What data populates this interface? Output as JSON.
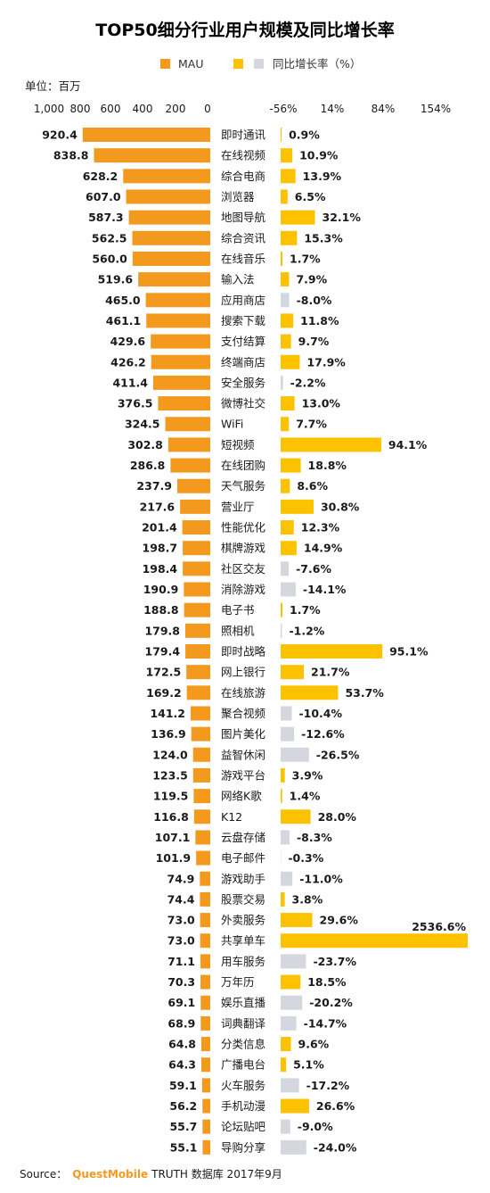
{
  "chart_data": {
    "type": "bar",
    "title": "TOP50细分行业用户规模及同比增长率",
    "unit_label": "单位：百万",
    "legend": {
      "mau": "MAU",
      "growth": "同比增长率（%）"
    },
    "colors": {
      "mau": "#f39a1e",
      "growth_positive": "#fcc200",
      "growth_negative": "#d4d7dd"
    },
    "left_axis": {
      "ticks": [
        "1,000",
        "800",
        "600",
        "400",
        "200",
        "0"
      ],
      "tick_values": [
        1000,
        800,
        600,
        400,
        200,
        0
      ],
      "range": [
        1000,
        0
      ]
    },
    "right_axis": {
      "ticks": [
        "-56%",
        "14%",
        "84%",
        "154%"
      ],
      "tick_values": [
        -56,
        14,
        84,
        154
      ]
    },
    "categories": [
      "即时通讯",
      "在线视频",
      "综合电商",
      "浏览器",
      "地图导航",
      "综合资讯",
      "在线音乐",
      "输入法",
      "应用商店",
      "搜索下载",
      "支付结算",
      "终端商店",
      "安全服务",
      "微博社交",
      "WiFi",
      "短视频",
      "在线团购",
      "天气服务",
      "营业厅",
      "性能优化",
      "棋牌游戏",
      "社区交友",
      "消除游戏",
      "电子书",
      "照相机",
      "即时战略",
      "网上银行",
      "在线旅游",
      "聚合视频",
      "图片美化",
      "益智休闲",
      "游戏平台",
      "网络K歌",
      "K12",
      "云盘存储",
      "电子邮件",
      "游戏助手",
      "股票交易",
      "外卖服务",
      "共享单车",
      "用车服务",
      "万年历",
      "娱乐直播",
      "词典翻译",
      "分类信息",
      "广播电台",
      "火车服务",
      "手机动漫",
      "论坛贴吧",
      "导购分享"
    ],
    "series": [
      {
        "name": "MAU",
        "values": [
          920.4,
          838.8,
          628.2,
          607.0,
          587.3,
          562.5,
          560.0,
          519.6,
          465.0,
          461.1,
          429.6,
          426.2,
          411.4,
          376.5,
          324.5,
          302.8,
          286.8,
          237.9,
          217.6,
          201.4,
          198.7,
          198.4,
          190.9,
          188.8,
          179.8,
          179.4,
          172.5,
          169.2,
          141.2,
          136.9,
          124.0,
          123.5,
          119.5,
          116.8,
          107.1,
          101.9,
          74.9,
          74.4,
          73.0,
          73.0,
          71.1,
          70.3,
          69.1,
          68.9,
          64.8,
          64.3,
          59.1,
          56.2,
          55.7,
          55.1
        ],
        "labels": [
          "920.4",
          "838.8",
          "628.2",
          "607.0",
          "587.3",
          "562.5",
          "560.0",
          "519.6",
          "465.0",
          "461.1",
          "429.6",
          "426.2",
          "411.4",
          "376.5",
          "324.5",
          "302.8",
          "286.8",
          "237.9",
          "217.6",
          "201.4",
          "198.7",
          "198.4",
          "190.9",
          "188.8",
          "179.8",
          "179.4",
          "172.5",
          "169.2",
          "141.2",
          "136.9",
          "124.0",
          "123.5",
          "119.5",
          "116.8",
          "107.1",
          "101.9",
          "74.9",
          "74.4",
          "73.0",
          "73.0",
          "71.1",
          "70.3",
          "69.1",
          "68.9",
          "64.8",
          "64.3",
          "59.1",
          "56.2",
          "55.7",
          "55.1"
        ]
      },
      {
        "name": "同比增长率（%）",
        "values": [
          0.9,
          10.9,
          13.9,
          6.5,
          32.1,
          15.3,
          1.7,
          7.9,
          -8.0,
          11.8,
          9.7,
          17.9,
          -2.2,
          13.0,
          7.7,
          94.1,
          18.8,
          8.6,
          30.8,
          12.3,
          14.9,
          -7.6,
          -14.1,
          1.7,
          -1.2,
          95.1,
          21.7,
          53.7,
          -10.4,
          -12.6,
          -26.5,
          3.9,
          1.4,
          28.0,
          -8.3,
          -0.3,
          -11.0,
          3.8,
          29.6,
          2536.6,
          -23.7,
          18.5,
          -20.2,
          -14.7,
          9.6,
          5.1,
          -17.2,
          26.6,
          -9.0,
          -24.0
        ],
        "labels": [
          "0.9%",
          "10.9%",
          "13.9%",
          "6.5%",
          "32.1%",
          "15.3%",
          "1.7%",
          "7.9%",
          "-8.0%",
          "11.8%",
          "9.7%",
          "17.9%",
          "-2.2%",
          "13.0%",
          "7.7%",
          "94.1%",
          "18.8%",
          "8.6%",
          "30.8%",
          "12.3%",
          "14.9%",
          "-7.6%",
          "-14.1%",
          "1.7%",
          "-1.2%",
          "95.1%",
          "21.7%",
          "53.7%",
          "-10.4%",
          "-12.6%",
          "-26.5%",
          "3.9%",
          "1.4%",
          "28.0%",
          "-8.3%",
          "-0.3%",
          "-11.0%",
          "3.8%",
          "29.6%",
          "2536.6%",
          "-23.7%",
          "18.5%",
          "-20.2%",
          "-14.7%",
          "9.6%",
          "5.1%",
          "-17.2%",
          "26.6%",
          "-9.0%",
          "-24.0%"
        ]
      }
    ]
  },
  "source": {
    "prefix": "Source：",
    "brand": "QuestMobile",
    "suffix": "TRUTH 数据库 2017年9月"
  }
}
